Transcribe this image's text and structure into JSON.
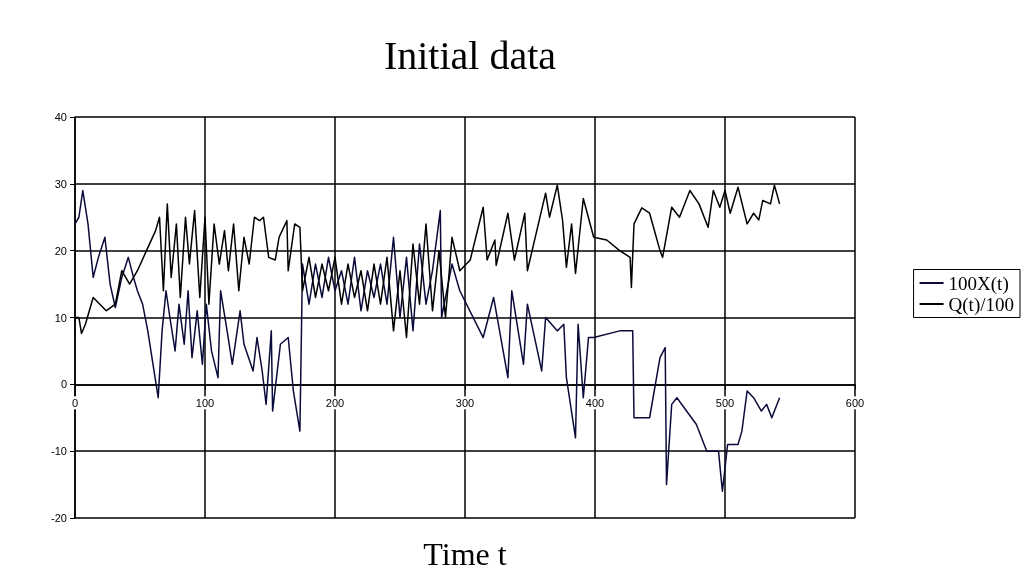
{
  "chart_data": {
    "type": "line",
    "title": "Initial data",
    "xlabel": "Time t",
    "xlim": [
      0,
      600
    ],
    "xticks": [
      0,
      100,
      200,
      300,
      400,
      500,
      600
    ],
    "ylim": [
      -20,
      40
    ],
    "yticks": [
      -20,
      -10,
      0,
      10,
      20,
      30,
      40
    ],
    "grid": true,
    "legend": "right",
    "marker": "none",
    "line_style": "solid",
    "series": [
      {
        "name": "100X(t)",
        "color": "#0b0b3b",
        "x": [
          0,
          3,
          6,
          10,
          14,
          18,
          23,
          27,
          31,
          36,
          41,
          45,
          48,
          52,
          56,
          60,
          64,
          67,
          70,
          73,
          77,
          80,
          84,
          87,
          90,
          94,
          98,
          101,
          105,
          110,
          112,
          117,
          121,
          127,
          130,
          137,
          140,
          144,
          147,
          151,
          152,
          158,
          164,
          168,
          173,
          175,
          180,
          185,
          190,
          195,
          200,
          205,
          210,
          215,
          220,
          225,
          230,
          235,
          240,
          245,
          250,
          255,
          260,
          265,
          270,
          275,
          281,
          282,
          290,
          296,
          314,
          322,
          333,
          336,
          345,
          348,
          359,
          362,
          371,
          376,
          378,
          385,
          387,
          391,
          395,
          399,
          419,
          429,
          430,
          442,
          450,
          454,
          455,
          459,
          463,
          478,
          486,
          495,
          498,
          502,
          510,
          513,
          517,
          522,
          528,
          532,
          536,
          542
        ],
        "values": [
          24,
          25,
          29,
          24,
          16,
          19,
          22,
          15,
          11.5,
          16,
          19,
          16,
          14,
          12,
          8,
          3,
          -2,
          8,
          14,
          10,
          5,
          12,
          6,
          14,
          4,
          11,
          3,
          12,
          5,
          1,
          14,
          8,
          3,
          11,
          6,
          2,
          7,
          2,
          -3,
          8,
          -4,
          6,
          7,
          -1,
          -7,
          18,
          12,
          18,
          13,
          19,
          14,
          17,
          12,
          19,
          11,
          17,
          13,
          18,
          12,
          22,
          10,
          19,
          8,
          21,
          12,
          17,
          26,
          10,
          18,
          14,
          7,
          13,
          1,
          14,
          3,
          12,
          2,
          10,
          8,
          9,
          1,
          -8,
          9,
          -2,
          7,
          7,
          8,
          8,
          -5,
          -5,
          4,
          5.5,
          -15,
          -3,
          -2,
          -6,
          -10,
          -10,
          -16,
          -9,
          -9,
          -7,
          -1,
          -2,
          -4,
          -3,
          -5,
          -2
        ]
      },
      {
        "name": "Q(t)/100",
        "color": "#000000",
        "x": [
          0,
          3,
          5,
          8,
          14,
          24,
          31,
          36,
          42,
          48,
          55,
          62,
          65,
          68,
          71,
          74,
          78,
          81,
          85,
          88,
          92,
          96,
          100,
          103,
          107,
          111,
          115,
          118,
          122,
          126,
          130,
          134,
          138,
          142,
          145,
          149,
          154,
          157,
          163,
          164,
          169,
          173,
          175,
          180,
          185,
          190,
          195,
          200,
          205,
          210,
          215,
          220,
          225,
          230,
          235,
          240,
          245,
          250,
          255,
          260,
          265,
          270,
          275,
          280,
          285,
          290,
          296,
          304,
          314,
          317,
          323,
          324,
          333,
          338,
          346,
          348,
          362,
          365,
          371,
          375,
          378,
          382,
          385,
          391,
          399,
          409,
          419,
          427,
          428,
          430,
          436,
          442,
          450,
          452,
          459,
          465,
          473,
          480,
          487,
          491,
          496,
          500,
          504,
          510,
          517,
          522,
          526,
          529,
          535,
          538,
          542
        ],
        "values": [
          10,
          10,
          7.6,
          9,
          13,
          11,
          12,
          17,
          15,
          17,
          20,
          23,
          25,
          14,
          27,
          16,
          24,
          13,
          25,
          18,
          26,
          13,
          25,
          12,
          24,
          18,
          23,
          17,
          24,
          14,
          22,
          18,
          25,
          24.5,
          25,
          19,
          18.6,
          22,
          24.5,
          17,
          24,
          23.5,
          14,
          19,
          13,
          18,
          14,
          19,
          12,
          18,
          13,
          17,
          11,
          18,
          12,
          19,
          8,
          17,
          7,
          21,
          12,
          24,
          11,
          20,
          10,
          22,
          17,
          18.6,
          26.5,
          18.6,
          21.6,
          17.8,
          25.6,
          18.6,
          25.6,
          17,
          28.6,
          25,
          29.8,
          24.6,
          17.5,
          24,
          16.6,
          27.8,
          22,
          21.6,
          20,
          19,
          14.5,
          24,
          26.4,
          25.6,
          20,
          19,
          26.5,
          25,
          29,
          27,
          23.5,
          29,
          26.5,
          29,
          25.6,
          29.5,
          24,
          25.6,
          24.6,
          27.5,
          27,
          29.8,
          27
        ]
      }
    ]
  }
}
